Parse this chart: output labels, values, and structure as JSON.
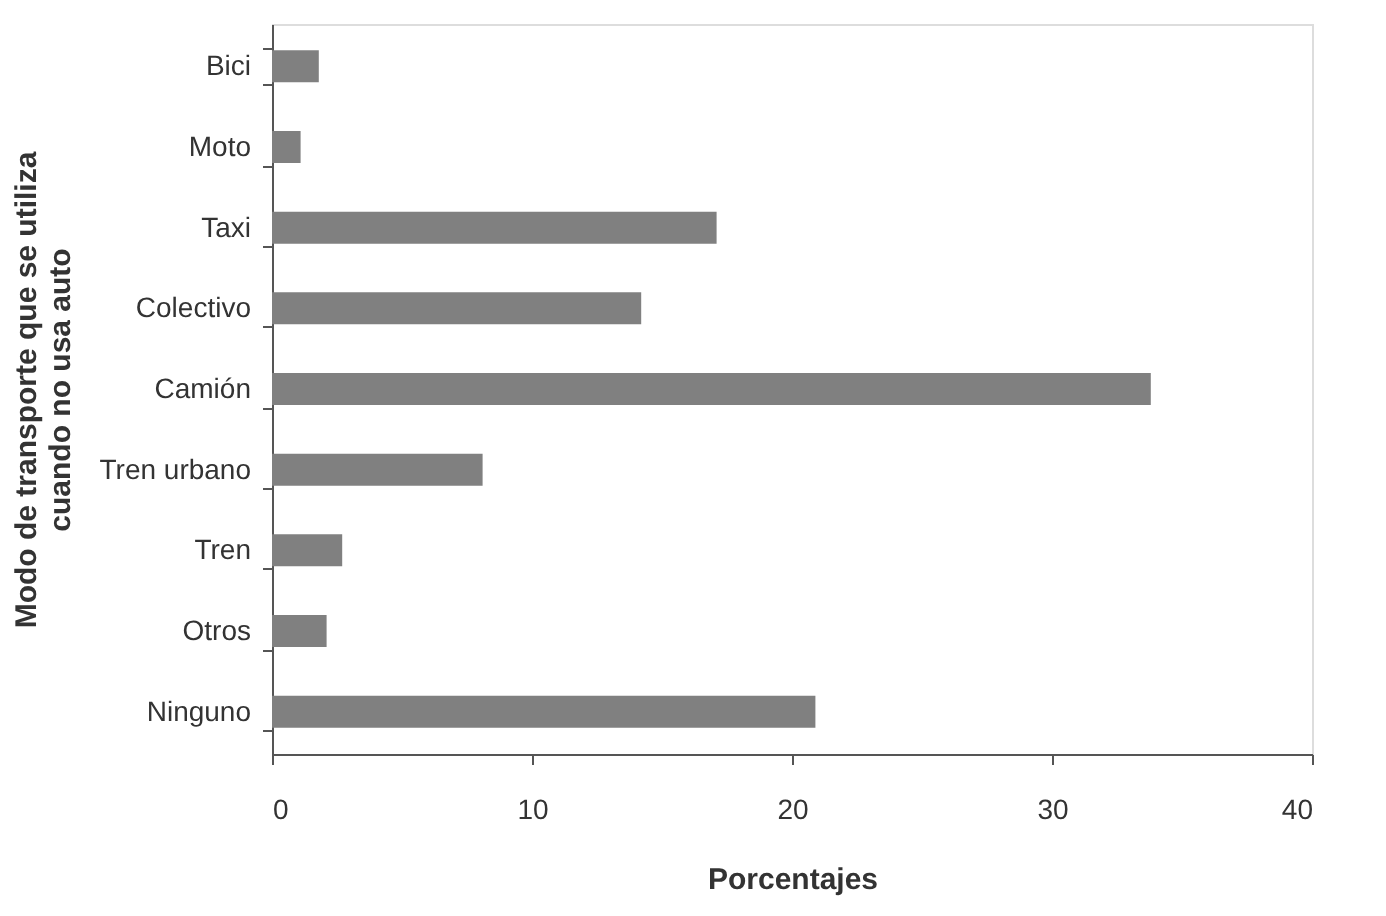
{
  "chart_data": {
    "type": "bar",
    "orientation": "horizontal",
    "xlabel": "Porcentajes",
    "ylabel": "Modo de transporte que se utiliza\ncuando no usa auto",
    "categories": [
      "Bici",
      "Moto",
      "Taxi",
      "Colectivo",
      "Camión",
      "Tren urbano",
      "Tren",
      "Otros",
      "Ninguno"
    ],
    "values": [
      1.8,
      1.1,
      17.1,
      14.2,
      33.8,
      8.1,
      2.7,
      2.1,
      20.9
    ],
    "color": "#808080",
    "xlim": [
      0,
      40
    ],
    "xticks": [
      0,
      10,
      20,
      30,
      40
    ],
    "grid": false
  }
}
